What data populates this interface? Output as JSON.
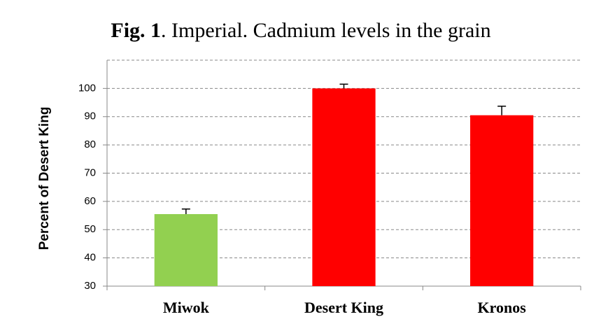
{
  "chart_data": {
    "type": "bar",
    "title_prefix": "Fig. 1",
    "title": ". Imperial. Cadmium levels in the grain",
    "y_label": "Percent of Desert King",
    "categories": [
      "Miwok",
      "Desert King",
      "Kronos"
    ],
    "values": [
      55.5,
      100,
      90.5
    ],
    "errors": [
      1.8,
      1.5,
      3.2
    ],
    "colors": [
      "#92d050",
      "#ff0000",
      "#ff0000"
    ],
    "ylim": [
      30,
      110
    ],
    "yticks": [
      30,
      40,
      50,
      60,
      70,
      80,
      90,
      100
    ],
    "grid": true
  }
}
